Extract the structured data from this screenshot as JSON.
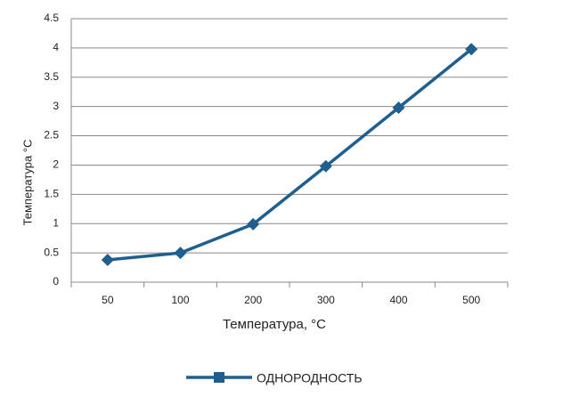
{
  "chart_data": {
    "type": "line",
    "x_label": "Температура, °C",
    "y_label": "Температура °C",
    "categories": [
      "50",
      "100",
      "200",
      "300",
      "400",
      "500"
    ],
    "series": [
      {
        "name": "ОДНОРОДНОСТЬ",
        "color": "#1f5f8f",
        "values": [
          0.38,
          0.5,
          0.99,
          1.98,
          2.98,
          3.98
        ]
      }
    ],
    "ylim": [
      0,
      4.5
    ],
    "yticks": [
      0,
      0.5,
      1,
      1.5,
      2,
      2.5,
      3,
      3.5,
      4,
      4.5
    ],
    "grid": true,
    "legend": "bottom"
  }
}
